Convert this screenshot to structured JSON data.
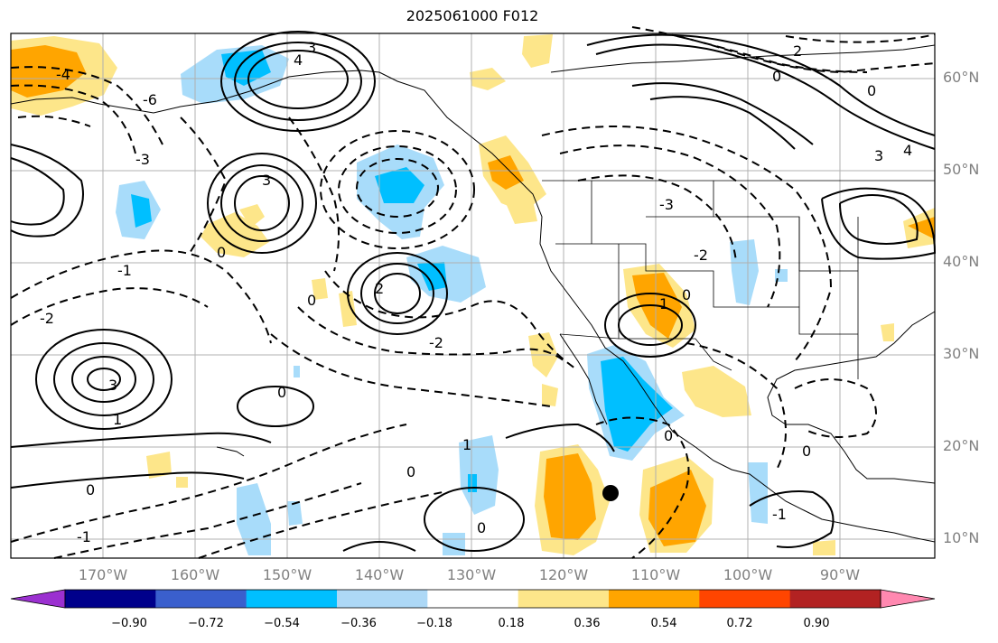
{
  "title": "2025061000 F012",
  "map": {
    "lat_labels": [
      "60°N",
      "50°N",
      "40°N",
      "30°N",
      "20°N",
      "10°N"
    ],
    "lon_labels": [
      "170°W",
      "160°W",
      "150°W",
      "140°W",
      "130°W",
      "120°W",
      "110°W",
      "100°W",
      "90°W"
    ],
    "contour_labels": [
      "-4",
      "-6",
      "-3",
      "-1",
      "-2",
      "0",
      "1",
      "2",
      "3",
      "4"
    ],
    "fill_colors": {
      "light_blue": "#a8dcfa",
      "blue": "#00bfff",
      "light_yellow": "#fde68a",
      "orange": "#ffa500"
    },
    "marker": "storm-center-dot"
  },
  "colorbar": {
    "colors": [
      "#9b30d0",
      "#00008b",
      "#3a5fcd",
      "#00bfff",
      "#add8f6",
      "#ffffff",
      "#fde68a",
      "#ffa500",
      "#ff4500",
      "#b22222",
      "#ff88b0"
    ],
    "tick_labels": [
      "−0.90",
      "−0.72",
      "−0.54",
      "−0.36",
      "−0.18",
      "0.18",
      "0.36",
      "0.54",
      "0.72",
      "0.90"
    ]
  }
}
